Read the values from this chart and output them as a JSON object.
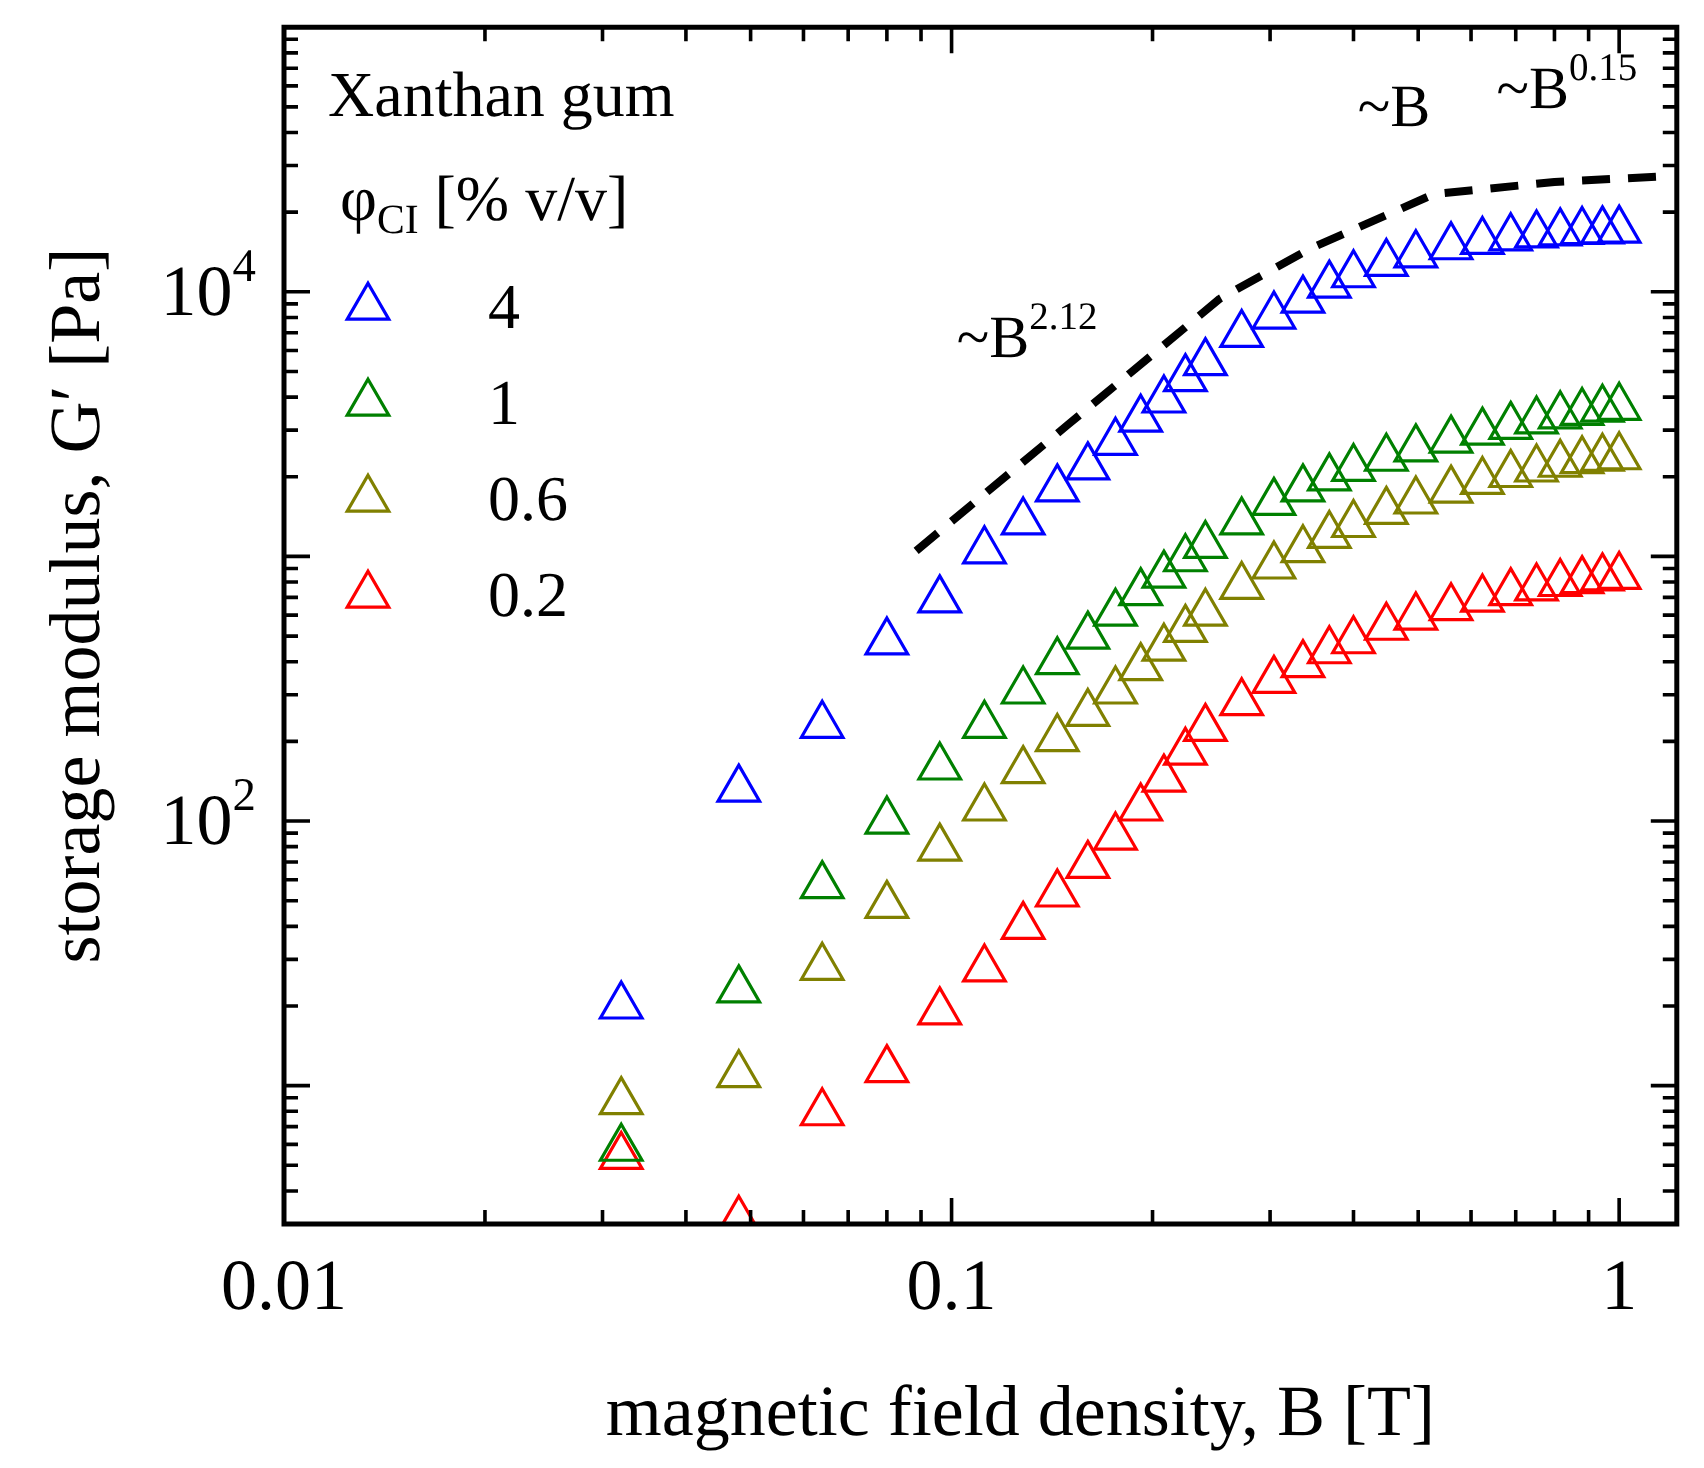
{
  "chart_data": {
    "type": "scatter",
    "xlabel": "magnetic field density, B [T]",
    "ylabel": "storage modulus, G′ [Pa]",
    "legend_title": "Xanthan gum\nφ$_{CI}$ [% v/v]",
    "legend": "top left",
    "log": "xy",
    "marker": "triangle",
    "x": [
      0.032,
      0.048,
      0.064,
      0.08,
      0.096,
      0.112,
      0.128,
      0.144,
      0.16,
      0.176,
      0.192,
      0.208,
      0.224,
      0.24,
      0.272,
      0.304,
      0.336,
      0.368,
      0.4,
      0.448,
      0.496,
      0.56,
      0.624,
      0.688,
      0.752,
      0.816,
      0.88,
      0.944,
      1.0
    ],
    "series": [
      {
        "name": "4",
        "color": "#0000ff",
        "values": [
          20,
          132,
          230,
          475,
          685,
          1050,
          1350,
          1800,
          2180,
          2700,
          3300,
          3900,
          4700,
          5400,
          6900,
          8100,
          9300,
          10600,
          11600,
          12800,
          13800,
          14800,
          15500,
          16000,
          16400,
          16700,
          16900,
          17000,
          17100
        ]
      },
      {
        "name": "1",
        "color": "#008000",
        "values": [
          5.8,
          23,
          57,
          100,
          160,
          230,
          310,
          400,
          500,
          610,
          730,
          850,
          980,
          1100,
          1350,
          1600,
          1800,
          1980,
          2150,
          2350,
          2550,
          2750,
          2950,
          3100,
          3250,
          3400,
          3500,
          3600,
          3660
        ]
      },
      {
        "name": "0.6",
        "color": "#808000",
        "values": [
          8.7,
          11,
          28,
          48,
          79,
          112,
          155,
          205,
          255,
          310,
          380,
          450,
          530,
          610,
          770,
          920,
          1060,
          1200,
          1320,
          1480,
          1620,
          1780,
          1920,
          2040,
          2140,
          2230,
          2300,
          2350,
          2380
        ]
      },
      {
        "name": "0.2",
        "color": "#ff0000",
        "values": [
          5.4,
          3.1,
          7.9,
          11.5,
          19,
          27.6,
          40,
          53,
          68,
          87,
          112,
          144,
          182,
          224,
          280,
          340,
          390,
          440,
          480,
          540,
          590,
          640,
          690,
          730,
          760,
          790,
          810,
          830,
          840
        ]
      },
      {
        "type": "line",
        "color": "#000000",
        "line_style": "dashed",
        "marker": "none",
        "x": [
          0.0885,
          0.149,
          0.252,
          0.345,
          0.528,
          0.8,
          1.16
        ],
        "values": [
          1050,
          3130,
          9400,
          14600,
          23400,
          26000,
          27300
        ]
      }
    ],
    "annotations": [
      "~B$^{2.12}$",
      "~B",
      "~B$^{0.15}$"
    ],
    "xlim": [
      0.01,
      1.22
    ],
    "xticks": [
      0.01,
      {
        "value": 0.02,
        "label": null
      },
      {
        "value": 0.03,
        "label": null
      },
      {
        "value": 0.04,
        "label": null
      },
      {
        "value": 0.05,
        "label": null
      },
      {
        "value": 0.06,
        "label": null
      },
      {
        "value": 0.07,
        "label": null
      },
      {
        "value": 0.08,
        "label": null
      },
      {
        "value": 0.09,
        "label": null
      },
      0.1,
      {
        "value": 0.2,
        "label": null
      },
      {
        "value": 0.3,
        "label": null
      },
      {
        "value": 0.4,
        "label": null
      },
      {
        "value": 0.5,
        "label": null
      },
      {
        "value": 0.6,
        "label": null
      },
      {
        "value": 0.7,
        "label": null
      },
      {
        "value": 0.8,
        "label": null
      },
      {
        "value": 0.9,
        "label": null
      },
      1
    ],
    "ylim": [
      3,
      100000
    ],
    "yticks": [
      {
        "value": 3,
        "label": null
      },
      {
        "value": 4,
        "label": null
      },
      {
        "value": 5,
        "label": null
      },
      {
        "value": 6,
        "label": null
      },
      {
        "value": 7,
        "label": null
      },
      {
        "value": 8,
        "label": null
      },
      {
        "value": 9,
        "label": null
      },
      {
        "value": 10,
        "label": null
      },
      {
        "value": 20,
        "label": null
      },
      {
        "value": 30,
        "label": null
      },
      {
        "value": 40,
        "label": null
      },
      {
        "value": 50,
        "label": null
      },
      {
        "value": 60,
        "label": null
      },
      {
        "value": 70,
        "label": null
      },
      {
        "value": 80,
        "label": null
      },
      {
        "value": 90,
        "label": null
      },
      {
        "value": 100,
        "label": "10$^{2}$"
      },
      {
        "value": 200,
        "label": null
      },
      {
        "value": 300,
        "label": null
      },
      {
        "value": 400,
        "label": null
      },
      {
        "value": 500,
        "label": null
      },
      {
        "value": 600,
        "label": null
      },
      {
        "value": 700,
        "label": null
      },
      {
        "value": 800,
        "label": null
      },
      {
        "value": 900,
        "label": null
      },
      {
        "value": 1000,
        "label": null
      },
      {
        "value": 2000,
        "label": null
      },
      {
        "value": 3000,
        "label": null
      },
      {
        "value": 4000,
        "label": null
      },
      {
        "value": 5000,
        "label": null
      },
      {
        "value": 6000,
        "label": null
      },
      {
        "value": 7000,
        "label": null
      },
      {
        "value": 8000,
        "label": null
      },
      {
        "value": 9000,
        "label": null
      },
      {
        "value": 10000,
        "label": "10$^{4}$"
      },
      {
        "value": 20000,
        "label": null
      },
      {
        "value": 30000,
        "label": null
      },
      {
        "value": 40000,
        "label": null
      },
      {
        "value": 50000,
        "label": null
      },
      {
        "value": 60000,
        "label": null
      },
      {
        "value": 70000,
        "label": null
      },
      {
        "value": 80000,
        "label": null
      },
      {
        "value": 90000,
        "label": null
      },
      {
        "value": 100000,
        "label": null
      }
    ]
  }
}
